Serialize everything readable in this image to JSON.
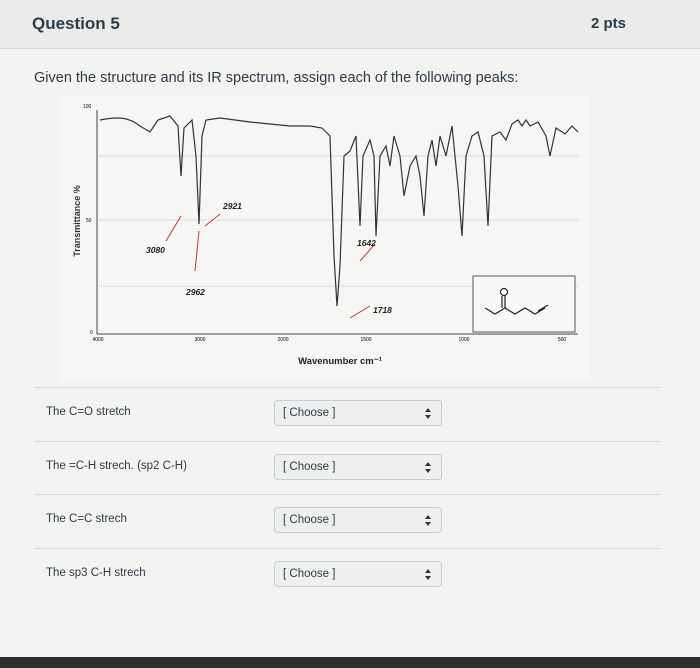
{
  "header": {
    "title": "Question 5",
    "points": "2 pts"
  },
  "prompt": "Given the structure and its IR spectrum, assign each of the following peaks:",
  "spectrum": {
    "y_axis_label": "Transmittance %",
    "x_axis_label": "Wavenumber cm⁻¹",
    "y_ticks": [
      "100",
      "50",
      "0"
    ],
    "x_ticks": [
      "4000",
      "3000",
      "2000",
      "1500",
      "1000",
      "500"
    ],
    "peak_labels": [
      "3080",
      "2921",
      "2962",
      "1642",
      "1718"
    ]
  },
  "questions": [
    {
      "label": "The C=O stretch",
      "answer": "[ Choose ]"
    },
    {
      "label": "The =C-H strech. (sp2 C-H)",
      "answer": "[ Choose ]"
    },
    {
      "label": "The C=C strech",
      "answer": "[ Choose ]"
    },
    {
      "label": "The sp3 C-H strech",
      "answer": "[ Choose ]"
    }
  ]
}
